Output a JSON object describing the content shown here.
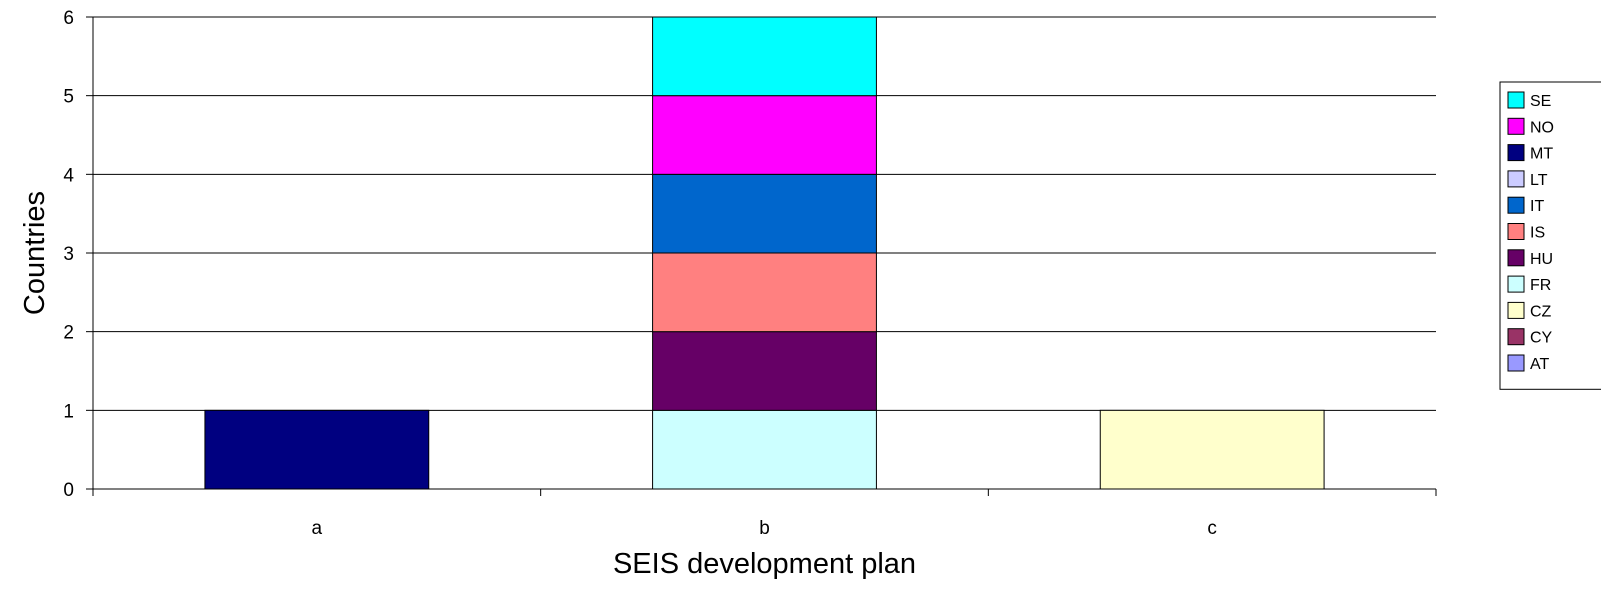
{
  "chart_data": {
    "type": "bar",
    "stacked": true,
    "categories": [
      "a",
      "b",
      "c"
    ],
    "xlabel": "SEIS development plan",
    "ylabel": "Countries",
    "ylim": [
      0,
      6
    ],
    "yticks": [
      "0",
      "1",
      "2",
      "3",
      "4",
      "5",
      "6"
    ],
    "grid": true,
    "legend_position": "right",
    "series": [
      {
        "name": "AT",
        "color": "#9999FF",
        "values": [
          0,
          0,
          0
        ]
      },
      {
        "name": "CY",
        "color": "#993366",
        "values": [
          0,
          0,
          0
        ]
      },
      {
        "name": "CZ",
        "color": "#FFFFCC",
        "values": [
          0,
          0,
          1
        ]
      },
      {
        "name": "FR",
        "color": "#CCFFFF",
        "values": [
          0,
          1,
          0
        ]
      },
      {
        "name": "HU",
        "color": "#660066",
        "values": [
          0,
          1,
          0
        ]
      },
      {
        "name": "IS",
        "color": "#FF8080",
        "values": [
          0,
          1,
          0
        ]
      },
      {
        "name": "IT",
        "color": "#0066CC",
        "values": [
          0,
          1,
          0
        ]
      },
      {
        "name": "LT",
        "color": "#CCCCFF",
        "values": [
          0,
          0,
          0
        ]
      },
      {
        "name": "MT",
        "color": "#000080",
        "values": [
          1,
          0,
          0
        ]
      },
      {
        "name": "NO",
        "color": "#FF00FF",
        "values": [
          0,
          1,
          0
        ]
      },
      {
        "name": "SE",
        "color": "#00FFFF",
        "values": [
          0,
          1,
          0
        ]
      }
    ]
  }
}
